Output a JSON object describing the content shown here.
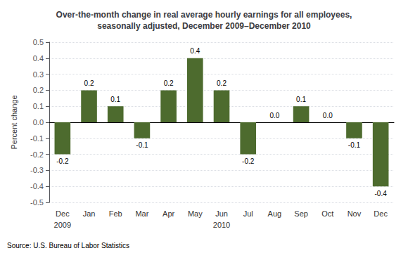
{
  "chart_data": {
    "type": "bar",
    "title": "Over-the-month change in real average hourly earnings for all employees,\nseasonally adjusted, December 2009–December 2010",
    "categories": [
      "Dec",
      "Jan",
      "Feb",
      "Mar",
      "Apr",
      "May",
      "Jun",
      "Jul",
      "Aug",
      "Sep",
      "Oct",
      "Nov",
      "Dec"
    ],
    "values": [
      -0.2,
      0.2,
      0.1,
      -0.1,
      0.2,
      0.4,
      0.2,
      -0.2,
      0.0,
      0.1,
      0.0,
      -0.1,
      -0.4
    ],
    "value_labels": [
      "-0.2",
      "0.2",
      "0.1",
      "-0.1",
      "0.2",
      "0.4",
      "0.2",
      "-0.2",
      "0.0",
      "0.1",
      "0.0",
      "-0.1",
      "-0.4"
    ],
    "data_labels": true,
    "color": "#4d6b2e",
    "ylabel": "Percent change",
    "ylim": [
      -0.5,
      0.5
    ],
    "yticks": [
      -0.5,
      -0.4,
      -0.3,
      -0.2,
      -0.1,
      {
        "value": 0,
        "label": "0.0"
      },
      0.1,
      0.2,
      0.3,
      0.4,
      0.5
    ],
    "grid": true,
    "annotations": [
      {
        "text": "2009",
        "x": 0
      },
      {
        "text": "2010",
        "x": 6
      }
    ],
    "source": "Source: U.S. Bureau of Labor Statistics"
  }
}
